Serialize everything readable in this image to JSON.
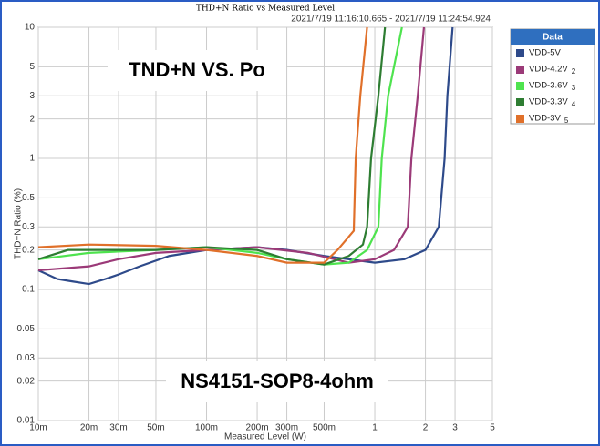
{
  "chart_data": {
    "type": "line",
    "title": "THD+N Ratio vs Measured Level",
    "subtitle": "2021/7/19 11:16:10.665 - 2021/7/19 11:24:54.924",
    "x_label": "Measured Level (W)",
    "y_label": "THD+N Ratio (%)",
    "annotations": [
      "TND+N VS. Po",
      "NS4151-SOP8-4ohm"
    ],
    "legend_title": "Data",
    "log_x": true,
    "log_y": true,
    "grid": true,
    "legend": "upper right",
    "xlim": [
      0.01,
      5
    ],
    "ylim": [
      0.01,
      10
    ],
    "xticks": [
      {
        "value": 0.01,
        "label": "10m"
      },
      {
        "value": 0.02,
        "label": "20m"
      },
      {
        "value": 0.03,
        "label": "30m"
      },
      {
        "value": 0.05,
        "label": "50m"
      },
      {
        "value": 0.1,
        "label": "100m"
      },
      {
        "value": 0.2,
        "label": "200m"
      },
      {
        "value": 0.3,
        "label": "300m"
      },
      {
        "value": 0.5,
        "label": "500m"
      },
      1,
      2,
      3,
      5
    ],
    "yticks": [
      0.01,
      0.02,
      0.03,
      0.05,
      0.1,
      0.2,
      0.3,
      0.5,
      1,
      2,
      3,
      5,
      10
    ],
    "series": [
      {
        "name": "VDD-5V",
        "color": "#2e4a8a",
        "x": [
          0.01,
          0.013,
          0.016,
          0.02,
          0.025,
          0.03,
          0.04,
          0.06,
          0.1,
          0.2,
          0.3,
          0.5,
          1,
          1.5,
          2,
          2.4,
          2.6,
          2.7,
          2.9
        ],
        "values": [
          0.14,
          0.12,
          0.115,
          0.11,
          0.12,
          0.13,
          0.15,
          0.18,
          0.2,
          0.21,
          0.2,
          0.18,
          0.16,
          0.17,
          0.2,
          0.3,
          1,
          3,
          10
        ]
      },
      {
        "name": "VDD-4.2V",
        "index_label": "2",
        "color": "#9b3a78",
        "x": [
          0.01,
          0.02,
          0.03,
          0.05,
          0.1,
          0.2,
          0.4,
          0.7,
          1,
          1.3,
          1.57,
          1.65,
          1.8,
          1.96
        ],
        "values": [
          0.14,
          0.15,
          0.17,
          0.19,
          0.2,
          0.21,
          0.19,
          0.16,
          0.17,
          0.2,
          0.3,
          1,
          3,
          10
        ]
      },
      {
        "name": "VDD-3.6V",
        "index_label": "3",
        "color": "#4ee34e",
        "x": [
          0.01,
          0.02,
          0.05,
          0.1,
          0.2,
          0.3,
          0.5,
          0.7,
          0.9,
          1.05,
          1.1,
          1.2,
          1.45
        ],
        "values": [
          0.17,
          0.19,
          0.2,
          0.21,
          0.19,
          0.17,
          0.155,
          0.16,
          0.2,
          0.3,
          1,
          3,
          10
        ]
      },
      {
        "name": "VDD-3.3V",
        "index_label": "4",
        "color": "#2e7d32",
        "x": [
          0.01,
          0.015,
          0.05,
          0.1,
          0.2,
          0.3,
          0.5,
          0.7,
          0.85,
          0.9,
          0.95,
          1.05,
          1.15
        ],
        "values": [
          0.17,
          0.2,
          0.2,
          0.21,
          0.2,
          0.17,
          0.155,
          0.18,
          0.22,
          0.3,
          1,
          3,
          10
        ]
      },
      {
        "name": "VDD-3V",
        "index_label": "5",
        "color": "#e0702a",
        "x": [
          0.01,
          0.02,
          0.05,
          0.1,
          0.2,
          0.3,
          0.5,
          0.6,
          0.75,
          0.77,
          0.82,
          0.9
        ],
        "values": [
          0.21,
          0.22,
          0.215,
          0.2,
          0.18,
          0.16,
          0.16,
          0.2,
          0.28,
          1,
          3,
          10
        ]
      }
    ]
  }
}
